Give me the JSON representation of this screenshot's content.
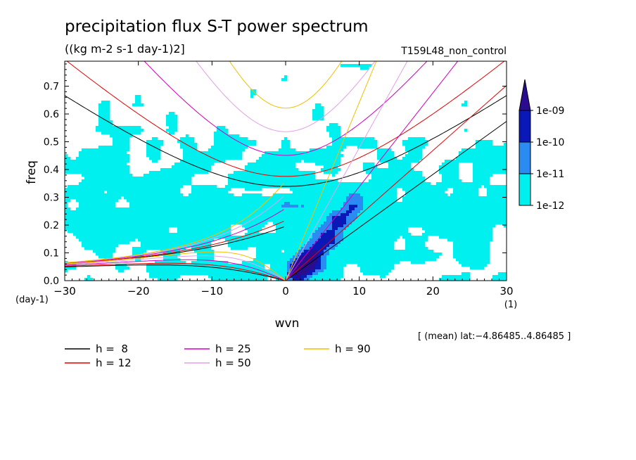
{
  "chart_data": {
    "type": "heatmap",
    "title": "precipitation flux S-T power spectrum",
    "units": "((kg m-2 s-1 day-1)2]",
    "run_label": "T159L48_non_control",
    "xlabel": "wvn",
    "x_unit": "(1)",
    "ylabel": "freq",
    "y_unit": "(day-1)",
    "xlim": [
      -30,
      30
    ],
    "ylim": [
      0,
      0.79
    ],
    "x_ticks": [
      -30,
      -20,
      -10,
      0,
      10,
      20,
      30
    ],
    "x_tick_labels": [
      "−30",
      "−20",
      "−10",
      "0",
      "10",
      "20",
      "30"
    ],
    "y_ticks": [
      0.0,
      0.1,
      0.2,
      0.3,
      0.4,
      0.5,
      0.6,
      0.7
    ],
    "y_tick_labels": [
      "0.0",
      "0.1",
      "0.2",
      "0.3",
      "0.4",
      "0.5",
      "0.6",
      "0.7"
    ],
    "annotation": "[ (mean) lat:−4.86485..4.86485 ]",
    "colorbar": {
      "levels": [
        "1e-12",
        "1e-11",
        "1e-10",
        "1e-09"
      ],
      "colors": [
        "#00f0f0",
        "#2a8cf2",
        "#0a18b8",
        "#2a0c90"
      ]
    },
    "dispersion_curves": [
      {
        "label": "h =  8",
        "equivalent_depth_m": 8,
        "color": "#000000"
      },
      {
        "label": "h = 12",
        "equivalent_depth_m": 12,
        "color": "#e00000"
      },
      {
        "label": "h = 25",
        "equivalent_depth_m": 25,
        "color": "#d000c0"
      },
      {
        "label": "h = 50",
        "equivalent_depth_m": 50,
        "color": "#e0a0e8"
      },
      {
        "label": "h = 90",
        "equivalent_depth_m": 90,
        "color": "#f0c000"
      }
    ]
  }
}
